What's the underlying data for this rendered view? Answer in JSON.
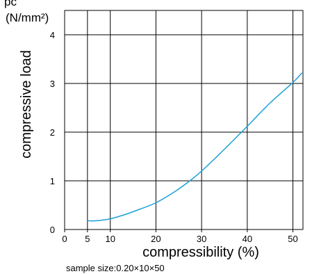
{
  "chart_data": {
    "type": "line",
    "cropped_top_text": "pc",
    "unit_label": "(N/mm²)",
    "ylabel": "compressive load",
    "xlabel": "compressibility  (%)",
    "note": "sample size:0.20×10×50",
    "xlim": [
      0,
      50
    ],
    "ylim": [
      0,
      4
    ],
    "x_ticks": [
      0,
      5,
      10,
      20,
      30,
      40,
      50
    ],
    "y_ticks": [
      0,
      1,
      2,
      3,
      4
    ],
    "grid": true,
    "line_color": "#1a9fd8",
    "series": [
      {
        "x": [
          5,
          7,
          10,
          13,
          16,
          20,
          24,
          27,
          30,
          35,
          40,
          45,
          50,
          52
        ],
        "y": [
          0.18,
          0.18,
          0.22,
          0.3,
          0.4,
          0.55,
          0.77,
          0.97,
          1.2,
          1.65,
          2.12,
          2.6,
          3.02,
          3.22
        ]
      }
    ]
  }
}
